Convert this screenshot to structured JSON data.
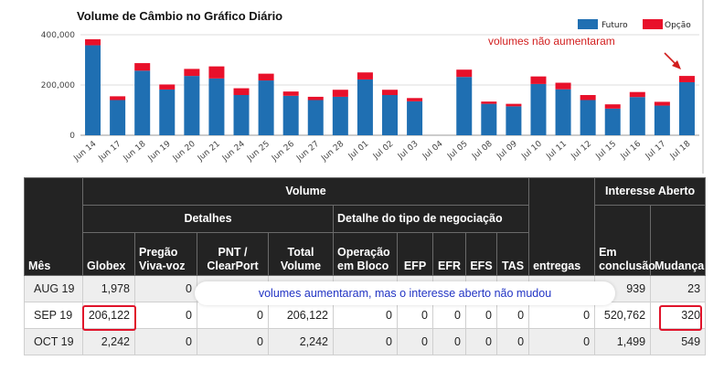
{
  "colors": {
    "futuro": "#1f6fb2",
    "opcao": "#e8102a",
    "annotation": "#d21e1e",
    "callout_text": "#2234c4",
    "header_bg": "#232323"
  },
  "chart": {
    "title": "Volume de Câmbio no Gráfico Diário",
    "legend": [
      {
        "label": "Futuro",
        "color": "#1f6fb2"
      },
      {
        "label": "Opção",
        "color": "#e8102a"
      }
    ],
    "annotation": "volumes não aumentaram",
    "y_ticks": [
      "400,000",
      "200,000",
      "0"
    ]
  },
  "chart_data": {
    "type": "bar",
    "stacked": true,
    "title": "Volume de Câmbio no Gráfico Diário",
    "categories": [
      "Jun 14",
      "Jun 17",
      "Jun 18",
      "Jun 19",
      "Jun 20",
      "Jun 21",
      "Jun 24",
      "Jun 25",
      "Jun 26",
      "Jun 27",
      "Jun 28",
      "Jul 01",
      "Jul 02",
      "Jul 03",
      "Jul 04",
      "Jul 05",
      "Jul 08",
      "Jul 09",
      "Jul 10",
      "Jul 11",
      "Jul 12",
      "Jul 15",
      "Jul 16",
      "Jul 17",
      "Jul 18"
    ],
    "series": [
      {
        "name": "Futuro",
        "values": [
          358000,
          140000,
          257000,
          182000,
          236000,
          226000,
          160000,
          218000,
          157000,
          140000,
          153000,
          222000,
          160000,
          135000,
          0,
          232000,
          125000,
          115000,
          204000,
          183000,
          140000,
          106000,
          152000,
          118000,
          211000
        ]
      },
      {
        "name": "Opção",
        "values": [
          24000,
          15000,
          30000,
          20000,
          28000,
          48000,
          27000,
          27000,
          17000,
          13000,
          28000,
          28000,
          21000,
          13000,
          0,
          29000,
          9000,
          10000,
          30000,
          26000,
          20000,
          17000,
          20000,
          15000,
          25000
        ]
      }
    ],
    "ylim": [
      0,
      400000
    ],
    "y_ticks": [
      0,
      200000,
      400000
    ],
    "grid": true,
    "legend_position": "top-right"
  },
  "table": {
    "group_headers": {
      "volume": "Volume",
      "interesse_aberto": "Interesse Aberto",
      "detalhes": "Detalhes",
      "detalhe_tipo": "Detalhe do tipo de negociação"
    },
    "columns": [
      "Mês",
      "Globex",
      "Pregão Viva-voz",
      "PNT / ClearPort",
      "Total Volume",
      "Operação em Bloco",
      "EFP",
      "EFR",
      "EFS",
      "TAS",
      "entregas",
      "Em conclusão",
      "Mudança"
    ],
    "rows": [
      {
        "cells": [
          "AUG 19",
          "1,978",
          "0",
          "",
          "",
          "",
          "",
          "",
          "",
          "",
          "",
          "939",
          "23"
        ]
      },
      {
        "cells": [
          "SEP 19",
          "206,122",
          "0",
          "0",
          "206,122",
          "0",
          "0",
          "0",
          "0",
          "0",
          "0",
          "520,762",
          "320"
        ]
      },
      {
        "cells": [
          "OCT 19",
          "2,242",
          "0",
          "0",
          "2,242",
          "0",
          "0",
          "0",
          "0",
          "0",
          "0",
          "1,499",
          "549"
        ]
      }
    ],
    "callout": "volumes aumentaram, mas o interesse aberto não mudou"
  }
}
